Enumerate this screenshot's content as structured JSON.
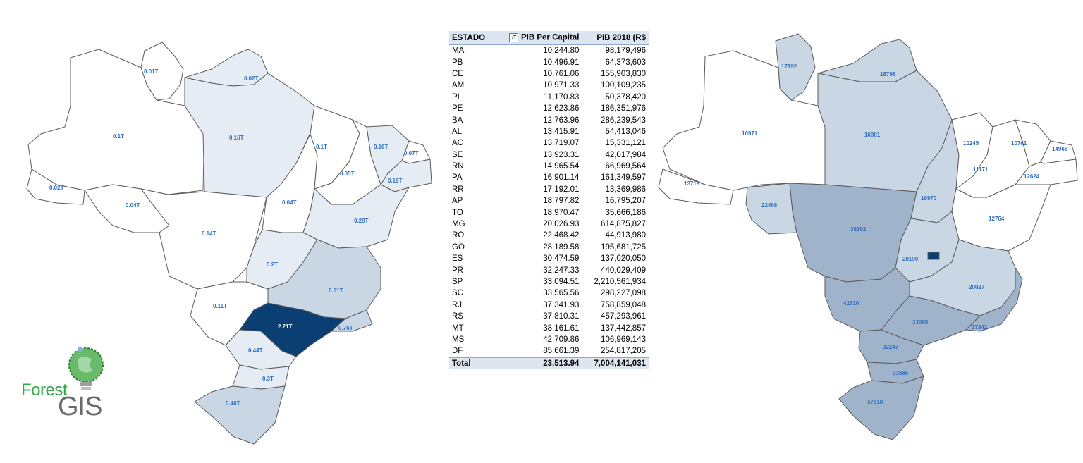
{
  "left_map": {
    "labels": {
      "RR": "0.01T",
      "AP": "0.02T",
      "AM": "0.1T",
      "PA": "0.16T",
      "AC": "0.02T",
      "RO": "0.04T",
      "MT": "0.14T",
      "TO": "0.04T",
      "MA": "0.1T",
      "PI": "0.05T",
      "CE": "0.16T",
      "RN": "0.07T",
      "PB_PE": "0.19T",
      "BA": "0.29T",
      "GO": "0.2T",
      "MG": "0.61T",
      "MS": "0.11T",
      "SP": "2.21T",
      "RJ": "0.76T",
      "PR": "0.44T",
      "SC": "0.3T",
      "RS": "0.46T"
    }
  },
  "right_map": {
    "labels": {
      "RR": "17192",
      "AP": "18798",
      "AM": "10971",
      "PA": "16901",
      "AC": "13719",
      "RO": "22468",
      "MT": "38162",
      "TO": "18970",
      "MA": "10245",
      "PI": "11171",
      "CE": "10761",
      "RN": "14966",
      "PE": "12624",
      "BA": "12764",
      "GO": "28190",
      "MG": "20027",
      "MS": "42710",
      "SP": "33095",
      "RJ": "37342",
      "PR": "32247",
      "SC": "33566",
      "RS": "37810"
    }
  },
  "table": {
    "headers": [
      "ESTADO",
      "PIB Per Capital",
      "PIB 2018 (R$"
    ],
    "filter_icon": "sort-filter-icon",
    "rows": [
      [
        "MA",
        "10,244.80",
        "98,179,496"
      ],
      [
        "PB",
        "10,496.91",
        "64,373,603"
      ],
      [
        "CE",
        "10,761.06",
        "155,903,830"
      ],
      [
        "AM",
        "10,971.33",
        "100,109,235"
      ],
      [
        "PI",
        "11,170.83",
        "50,378,420"
      ],
      [
        "PE",
        "12,623.86",
        "186,351,976"
      ],
      [
        "BA",
        "12,763.96",
        "286,239,543"
      ],
      [
        "AL",
        "13,415.91",
        "54,413,046"
      ],
      [
        "AC",
        "13,719.07",
        "15,331,121"
      ],
      [
        "SE",
        "13,923.31",
        "42,017,984"
      ],
      [
        "RN",
        "14,965.54",
        "66,969,564"
      ],
      [
        "PA",
        "16,901.14",
        "161,349,597"
      ],
      [
        "RR",
        "17,192.01",
        "13,369,986"
      ],
      [
        "AP",
        "18,797.82",
        "16,795,207"
      ],
      [
        "TO",
        "18,970.47",
        "35,666,186"
      ],
      [
        "MG",
        "20,026.93",
        "614,875,827"
      ],
      [
        "RO",
        "22,468.42",
        "44,913,980"
      ],
      [
        "GO",
        "28,189.58",
        "195,681,725"
      ],
      [
        "ES",
        "30,474.59",
        "137,020,050"
      ],
      [
        "PR",
        "32,247.33",
        "440,029,409"
      ],
      [
        "SP",
        "33,094.51",
        "2,210,561,934"
      ],
      [
        "SC",
        "33,565.56",
        "298,227,098"
      ],
      [
        "RJ",
        "37,341.93",
        "758,859,048"
      ],
      [
        "RS",
        "37,810.31",
        "457,293,961"
      ],
      [
        "MT",
        "38,161.61",
        "137,442,857"
      ],
      [
        "MS",
        "42,709.86",
        "106,969,143"
      ],
      [
        "DF",
        "85,661.39",
        "254,817,205"
      ]
    ],
    "total": [
      "Total",
      "23,513.94",
      "7,004,141,031"
    ]
  },
  "logo": {
    "word1": "Forest",
    "word2": "GIS"
  },
  "colors": {
    "white": "#ffffff",
    "light": "#e6ecf3",
    "mid": "#c9d6e3",
    "dark": "#9fb4cb",
    "darkest": "#0b3f73",
    "label": "#2f6fc2"
  }
}
